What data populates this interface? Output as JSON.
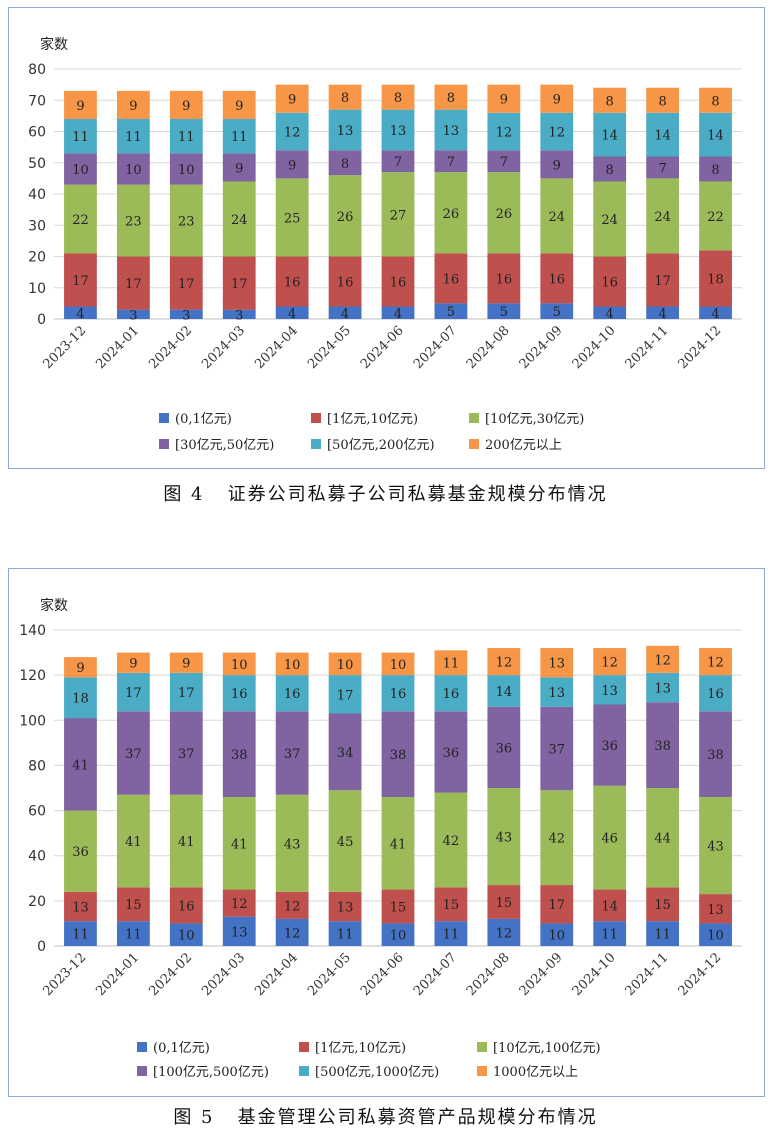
{
  "chart_data": [
    {
      "type": "bar",
      "stacked": true,
      "title": "证券公司私募子公司私募基金规模分布情况",
      "caption_number": "图 4",
      "ylabel": "家数",
      "ylim": [
        0,
        80
      ],
      "yticks": [
        0,
        10,
        20,
        30,
        40,
        50,
        60,
        70,
        80
      ],
      "grid": true,
      "legend_position": "bottom",
      "categories": [
        "2023-12",
        "2024-01",
        "2024-02",
        "2024-03",
        "2024-04",
        "2024-05",
        "2024-06",
        "2024-07",
        "2024-08",
        "2024-09",
        "2024-10",
        "2024-11",
        "2024-12"
      ],
      "series": [
        {
          "name": "(0,1亿元)",
          "color": "#4472c4",
          "values": [
            4,
            3,
            3,
            3,
            4,
            4,
            4,
            5,
            5,
            5,
            4,
            4,
            4
          ]
        },
        {
          "name": "[1亿元,10亿元)",
          "color": "#c0504d",
          "values": [
            17,
            17,
            17,
            17,
            16,
            16,
            16,
            16,
            16,
            16,
            16,
            17,
            18
          ]
        },
        {
          "name": "[10亿元,30亿元)",
          "color": "#9bbb59",
          "values": [
            22,
            23,
            23,
            24,
            25,
            26,
            27,
            26,
            26,
            24,
            24,
            24,
            22
          ]
        },
        {
          "name": "[30亿元,50亿元)",
          "color": "#8064a2",
          "values": [
            10,
            10,
            10,
            9,
            9,
            8,
            7,
            7,
            7,
            9,
            8,
            7,
            8
          ]
        },
        {
          "name": "[50亿元,200亿元)",
          "color": "#4bacc6",
          "values": [
            11,
            11,
            11,
            11,
            12,
            13,
            13,
            13,
            12,
            12,
            14,
            14,
            14
          ]
        },
        {
          "name": "200亿元以上",
          "color": "#f79646",
          "values": [
            9,
            9,
            9,
            9,
            9,
            8,
            8,
            8,
            9,
            9,
            8,
            8,
            8
          ]
        }
      ]
    },
    {
      "type": "bar",
      "stacked": true,
      "title": "基金管理公司私募资管产品规模分布情况",
      "caption_number": "图 5",
      "ylabel": "家数",
      "ylim": [
        0,
        140
      ],
      "yticks": [
        0,
        20,
        40,
        60,
        80,
        100,
        120,
        140
      ],
      "grid": true,
      "legend_position": "bottom",
      "categories": [
        "2023-12",
        "2024-01",
        "2024-02",
        "2024-03",
        "2024-04",
        "2024-05",
        "2024-06",
        "2024-07",
        "2024-08",
        "2024-09",
        "2024-10",
        "2024-11",
        "2024-12"
      ],
      "series": [
        {
          "name": "(0,1亿元)",
          "color": "#4472c4",
          "values": [
            11,
            11,
            10,
            13,
            12,
            11,
            10,
            11,
            12,
            10,
            11,
            11,
            10
          ]
        },
        {
          "name": "[1亿元,10亿元)",
          "color": "#c0504d",
          "values": [
            13,
            15,
            16,
            12,
            12,
            13,
            15,
            15,
            15,
            17,
            14,
            15,
            13
          ]
        },
        {
          "name": "[10亿元,100亿元)",
          "color": "#9bbb59",
          "values": [
            36,
            41,
            41,
            41,
            43,
            45,
            41,
            42,
            43,
            42,
            46,
            44,
            43
          ]
        },
        {
          "name": "[100亿元,500亿元)",
          "color": "#8064a2",
          "values": [
            41,
            37,
            37,
            38,
            37,
            34,
            38,
            36,
            36,
            37,
            36,
            38,
            38
          ]
        },
        {
          "name": "[500亿元,1000亿元)",
          "color": "#4bacc6",
          "values": [
            18,
            17,
            17,
            16,
            16,
            17,
            16,
            16,
            14,
            13,
            13,
            13,
            16
          ]
        },
        {
          "name": "1000亿元以上",
          "color": "#f79646",
          "values": [
            9,
            9,
            9,
            10,
            10,
            10,
            10,
            11,
            12,
            13,
            12,
            12,
            12
          ]
        }
      ]
    }
  ]
}
